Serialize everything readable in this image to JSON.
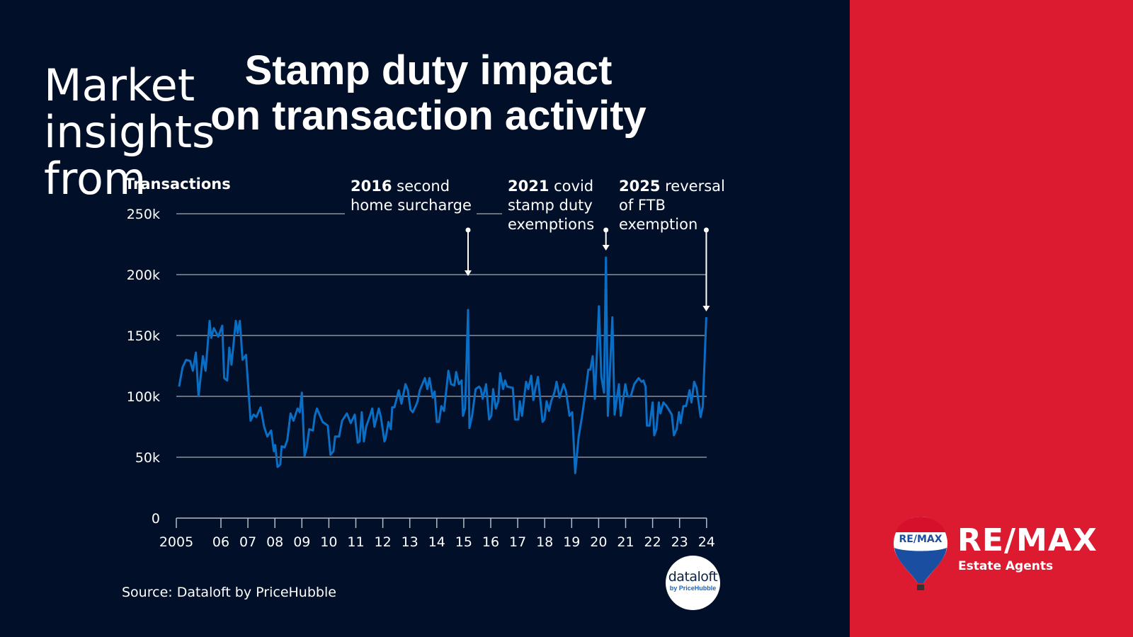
{
  "title_lines": [
    "Stamp duty impact",
    "on transaction activity"
  ],
  "side_heading": [
    "Market",
    "insights",
    "from"
  ],
  "source": "Source: Dataloft by PriceHubble",
  "dataloft_badge": {
    "name": "dataloft",
    "sub": "by PriceHubble"
  },
  "brand": {
    "logo_text": "RE/MAX",
    "balloon_text": "RE/MAX",
    "subtitle": "Estate Agents"
  },
  "colors": {
    "background": "#010f28",
    "panel": "#dc1b31",
    "line": "#0a6fc4",
    "grid": "#8a8f99"
  },
  "annotations": [
    {
      "bold": "2016",
      "lines": [
        " second",
        "home surcharge"
      ]
    },
    {
      "bold": "2021",
      "lines": [
        " covid",
        "stamp duty",
        "exemptions"
      ]
    },
    {
      "bold": "2025",
      "lines": [
        " reversal",
        "of FTB",
        "exemption"
      ]
    }
  ],
  "chart_data": {
    "type": "line",
    "title": "Stamp duty impact on transaction activity",
    "ylabel": "Transactions",
    "xlabel": "",
    "ylim": [
      0,
      250
    ],
    "yticks": [
      0,
      50,
      100,
      150,
      200,
      250
    ],
    "ytick_labels": [
      "0",
      "50k",
      "100k",
      "150k",
      "200k",
      "250k"
    ],
    "xticks": [
      2005,
      2006,
      2007,
      2008,
      2009,
      2010,
      2011,
      2012,
      2013,
      2014,
      2015,
      2016,
      2017,
      2018,
      2019,
      2020,
      2021,
      2022,
      2023,
      2024
    ],
    "xtick_labels": [
      "2005",
      "06",
      "07",
      "08",
      "09",
      "10",
      "11",
      "12",
      "13",
      "14",
      "15",
      "16",
      "17",
      "18",
      "19",
      "20",
      "21",
      "22",
      "23",
      "24"
    ],
    "grid": "horizontal",
    "annotation_years": [
      2015.16,
      2020.27,
      2023.99
    ],
    "series": [
      {
        "unit": "k",
        "points": [
          [
            2004.45,
            108
          ],
          [
            2004.58,
            124
          ],
          [
            2004.71,
            130
          ],
          [
            2004.86,
            129
          ],
          [
            2004.96,
            121
          ],
          [
            2005.07,
            136
          ],
          [
            2005.17,
            100
          ],
          [
            2005.33,
            133
          ],
          [
            2005.43,
            121
          ],
          [
            2005.58,
            162
          ],
          [
            2005.64,
            148
          ],
          [
            2005.74,
            156
          ],
          [
            2005.9,
            149
          ],
          [
            2006.05,
            158
          ],
          [
            2006.12,
            115
          ],
          [
            2006.23,
            113
          ],
          [
            2006.31,
            140
          ],
          [
            2006.39,
            126
          ],
          [
            2006.55,
            162
          ],
          [
            2006.62,
            152
          ],
          [
            2006.7,
            162
          ],
          [
            2006.8,
            130
          ],
          [
            2006.93,
            134
          ],
          [
            2007.1,
            80
          ],
          [
            2007.21,
            85
          ],
          [
            2007.31,
            83
          ],
          [
            2007.47,
            91
          ],
          [
            2007.6,
            75
          ],
          [
            2007.72,
            67
          ],
          [
            2007.86,
            72
          ],
          [
            2007.96,
            55
          ],
          [
            2008.01,
            60
          ],
          [
            2008.1,
            42
          ],
          [
            2008.2,
            44
          ],
          [
            2008.25,
            59
          ],
          [
            2008.36,
            58
          ],
          [
            2008.46,
            64
          ],
          [
            2008.58,
            86
          ],
          [
            2008.69,
            80
          ],
          [
            2008.84,
            90
          ],
          [
            2008.92,
            87
          ],
          [
            2009.0,
            103
          ],
          [
            2009.1,
            51
          ],
          [
            2009.18,
            58
          ],
          [
            2009.27,
            73
          ],
          [
            2009.41,
            72
          ],
          [
            2009.48,
            84
          ],
          [
            2009.56,
            90
          ],
          [
            2009.77,
            79
          ],
          [
            2009.96,
            76
          ],
          [
            2010.06,
            52
          ],
          [
            2010.17,
            55
          ],
          [
            2010.23,
            67
          ],
          [
            2010.38,
            67
          ],
          [
            2010.49,
            80
          ],
          [
            2010.67,
            86
          ],
          [
            2010.81,
            78
          ],
          [
            2010.96,
            85
          ],
          [
            2011.07,
            62
          ],
          [
            2011.14,
            63
          ],
          [
            2011.22,
            87
          ],
          [
            2011.3,
            63
          ],
          [
            2011.38,
            75
          ],
          [
            2011.51,
            83
          ],
          [
            2011.61,
            90
          ],
          [
            2011.69,
            75
          ],
          [
            2011.85,
            90
          ],
          [
            2011.93,
            83
          ],
          [
            2012.06,
            63
          ],
          [
            2012.1,
            65
          ],
          [
            2012.21,
            79
          ],
          [
            2012.3,
            73
          ],
          [
            2012.35,
            91
          ],
          [
            2012.43,
            91
          ],
          [
            2012.59,
            105
          ],
          [
            2012.69,
            94
          ],
          [
            2012.84,
            110
          ],
          [
            2012.93,
            105
          ],
          [
            2013.03,
            89
          ],
          [
            2013.11,
            87
          ],
          [
            2013.24,
            93
          ],
          [
            2013.29,
            96
          ],
          [
            2013.37,
            105
          ],
          [
            2013.56,
            115
          ],
          [
            2013.65,
            106
          ],
          [
            2013.73,
            115
          ],
          [
            2013.85,
            99
          ],
          [
            2013.92,
            104
          ],
          [
            2014.0,
            79
          ],
          [
            2014.08,
            79
          ],
          [
            2014.17,
            92
          ],
          [
            2014.27,
            88
          ],
          [
            2014.43,
            121
          ],
          [
            2014.53,
            110
          ],
          [
            2014.65,
            109
          ],
          [
            2014.72,
            120
          ],
          [
            2014.82,
            110
          ],
          [
            2014.92,
            113
          ],
          [
            2014.97,
            84
          ],
          [
            2015.05,
            90
          ],
          [
            2015.16,
            171
          ],
          [
            2015.21,
            74
          ],
          [
            2015.31,
            84
          ],
          [
            2015.44,
            106
          ],
          [
            2015.57,
            108
          ],
          [
            2015.63,
            106
          ],
          [
            2015.7,
            98
          ],
          [
            2015.83,
            110
          ],
          [
            2015.94,
            81
          ],
          [
            2016.02,
            84
          ],
          [
            2016.09,
            106
          ],
          [
            2016.19,
            90
          ],
          [
            2016.28,
            96
          ],
          [
            2016.35,
            119
          ],
          [
            2016.46,
            106
          ],
          [
            2016.53,
            113
          ],
          [
            2016.61,
            108
          ],
          [
            2016.82,
            107
          ],
          [
            2016.9,
            81
          ],
          [
            2017.02,
            81
          ],
          [
            2017.08,
            96
          ],
          [
            2017.16,
            84
          ],
          [
            2017.31,
            112
          ],
          [
            2017.39,
            106
          ],
          [
            2017.5,
            117
          ],
          [
            2017.58,
            97
          ],
          [
            2017.65,
            106
          ],
          [
            2017.75,
            116
          ],
          [
            2017.92,
            79
          ],
          [
            2017.99,
            81
          ],
          [
            2018.07,
            96
          ],
          [
            2018.16,
            88
          ],
          [
            2018.24,
            96
          ],
          [
            2018.36,
            103
          ],
          [
            2018.44,
            112
          ],
          [
            2018.55,
            99
          ],
          [
            2018.7,
            110
          ],
          [
            2018.79,
            104
          ],
          [
            2018.92,
            84
          ],
          [
            2019.02,
            87
          ],
          [
            2019.13,
            37
          ],
          [
            2019.26,
            67
          ],
          [
            2019.38,
            83
          ],
          [
            2019.49,
            100
          ],
          [
            2019.62,
            122
          ],
          [
            2019.69,
            122
          ],
          [
            2019.78,
            133
          ],
          [
            2019.86,
            98
          ],
          [
            2020.01,
            174
          ],
          [
            2020.1,
            116
          ],
          [
            2020.2,
            103
          ],
          [
            2020.27,
            214
          ],
          [
            2020.34,
            84
          ],
          [
            2020.51,
            165
          ],
          [
            2020.59,
            85
          ],
          [
            2020.75,
            110
          ],
          [
            2020.82,
            84
          ],
          [
            2020.99,
            110
          ],
          [
            2021.07,
            100
          ],
          [
            2021.19,
            100
          ],
          [
            2021.32,
            110
          ],
          [
            2021.48,
            115
          ],
          [
            2021.59,
            112
          ],
          [
            2021.66,
            113
          ],
          [
            2021.74,
            108
          ],
          [
            2021.79,
            76
          ],
          [
            2021.89,
            76
          ],
          [
            2022.0,
            95
          ],
          [
            2022.06,
            68
          ],
          [
            2022.14,
            73
          ],
          [
            2022.23,
            95
          ],
          [
            2022.29,
            86
          ],
          [
            2022.4,
            95
          ],
          [
            2022.52,
            92
          ],
          [
            2022.71,
            85
          ],
          [
            2022.79,
            68
          ],
          [
            2022.89,
            73
          ],
          [
            2022.98,
            87
          ],
          [
            2023.04,
            78
          ],
          [
            2023.14,
            92
          ],
          [
            2023.24,
            92
          ],
          [
            2023.37,
            105
          ],
          [
            2023.44,
            95
          ],
          [
            2023.54,
            112
          ],
          [
            2023.63,
            107
          ],
          [
            2023.78,
            83
          ],
          [
            2023.86,
            92
          ],
          [
            2023.99,
            165
          ]
        ]
      }
    ]
  }
}
